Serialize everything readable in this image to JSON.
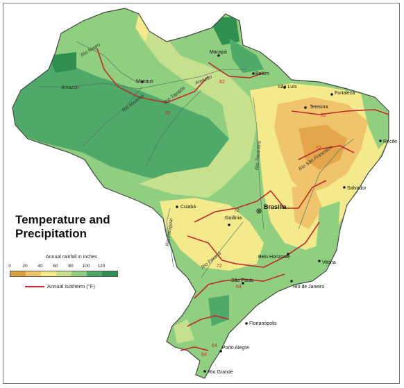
{
  "title_line1": "Temperature and",
  "title_line2": "Precipitation",
  "legend": {
    "rainfall_title": "Annual rainfall in inches",
    "ticks": [
      "0",
      "20",
      "40",
      "60",
      "80",
      "100",
      "120"
    ],
    "colors": [
      "#d9a23a",
      "#f0c46c",
      "#f4ea8c",
      "#c7e08e",
      "#8fcf7f",
      "#4faa6a",
      "#2f8f50"
    ],
    "isotherm_label": "Annual isotherm (°F)",
    "isotherm_color": "#c0282a"
  },
  "cities": [
    {
      "name": "Macapá"
    },
    {
      "name": "Belém"
    },
    {
      "name": "Manaus"
    },
    {
      "name": "São Luís"
    },
    {
      "name": "Fortaleza"
    },
    {
      "name": "Teresina"
    },
    {
      "name": "Recife"
    },
    {
      "name": "Salvador"
    },
    {
      "name": "Brasília"
    },
    {
      "name": "Cuiabá"
    },
    {
      "name": "Goiânia"
    },
    {
      "name": "Belo Horizonte"
    },
    {
      "name": "Vitória"
    },
    {
      "name": "Rio de Janeiro"
    },
    {
      "name": "São Paulo"
    },
    {
      "name": "Florianópolis"
    },
    {
      "name": "Porto Alegre"
    },
    {
      "name": "Rio Grande"
    }
  ],
  "rivers": [
    {
      "name": "Rio Negro"
    },
    {
      "name": "Amazon"
    },
    {
      "name": "Rio Madeira"
    },
    {
      "name": "Rio Tapajós"
    },
    {
      "name": "Amazon"
    },
    {
      "name": "Rio Tocantins"
    },
    {
      "name": "Rio São Francisco"
    },
    {
      "name": "Rio Paraguai"
    },
    {
      "name": "Rio Paraná"
    }
  ],
  "isotherm_labels": [
    "82",
    "82",
    "82",
    "72",
    "72",
    "72",
    "64",
    "64",
    "64"
  ]
}
